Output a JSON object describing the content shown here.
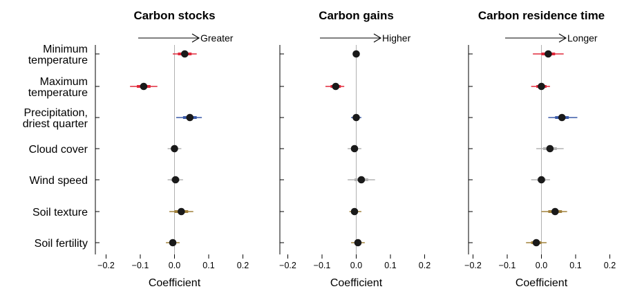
{
  "colors": {
    "red": "#e0283a",
    "blue": "#3a5aa8",
    "gray": "#b3b3b3",
    "brown": "#a0803a",
    "point": "#1a1a1a",
    "zero_line": "#b0b0b0"
  },
  "chart_data": [
    {
      "type": "scatter",
      "title": "Carbon stocks",
      "direction_label": "Greater",
      "xlabel": "Coefficient",
      "xlim": [
        -0.2,
        0.2
      ],
      "xticks": [
        "−0.2",
        "−0.1",
        "0.0",
        "0.1",
        "0.2"
      ],
      "categories": [
        "Minimum\ntemperature",
        "Maximum\ntemperature",
        "Precipitation,\ndriest quarter",
        "Cloud cover",
        "Wind speed",
        "Soil texture",
        "Soil fertility"
      ],
      "points": [
        {
          "est": 0.03,
          "ci_thick": [
            0.01,
            0.05
          ],
          "ci_thin": [
            -0.005,
            0.065
          ],
          "color": "red"
        },
        {
          "est": -0.09,
          "ci_thick": [
            -0.11,
            -0.07
          ],
          "ci_thin": [
            -0.13,
            -0.05
          ],
          "color": "red"
        },
        {
          "est": 0.045,
          "ci_thick": [
            0.025,
            0.065
          ],
          "ci_thin": [
            0.005,
            0.08
          ],
          "color": "blue"
        },
        {
          "est": 0.0,
          "ci_thick": [
            -0.01,
            0.01
          ],
          "ci_thin": [
            -0.02,
            0.02
          ],
          "color": "gray"
        },
        {
          "est": 0.003,
          "ci_thick": [
            -0.01,
            0.015
          ],
          "ci_thin": [
            -0.02,
            0.025
          ],
          "color": "gray"
        },
        {
          "est": 0.02,
          "ci_thick": [
            0.0,
            0.04
          ],
          "ci_thin": [
            -0.015,
            0.055
          ],
          "color": "brown"
        },
        {
          "est": -0.005,
          "ci_thick": [
            -0.015,
            0.005
          ],
          "ci_thin": [
            -0.025,
            0.015
          ],
          "color": "brown"
        }
      ]
    },
    {
      "type": "scatter",
      "title": "Carbon gains",
      "direction_label": "Higher",
      "xlabel": "Coefficient",
      "xlim": [
        -0.2,
        0.2
      ],
      "xticks": [
        "−0.2",
        "−0.1",
        "0.0",
        "0.1",
        "0.2"
      ],
      "categories": [
        "Minimum\ntemperature",
        "Maximum\ntemperature",
        "Precipitation,\ndriest quarter",
        "Cloud cover",
        "Wind speed",
        "Soil texture",
        "Soil fertility"
      ],
      "points": [
        {
          "est": 0.0,
          "ci_thick": [
            -0.005,
            0.005
          ],
          "ci_thin": [
            -0.01,
            0.01
          ],
          "color": "red"
        },
        {
          "est": -0.06,
          "ci_thick": [
            -0.075,
            -0.045
          ],
          "ci_thin": [
            -0.09,
            -0.035
          ],
          "color": "red"
        },
        {
          "est": 0.0,
          "ci_thick": [
            -0.007,
            0.007
          ],
          "ci_thin": [
            -0.015,
            0.015
          ],
          "color": "blue"
        },
        {
          "est": -0.005,
          "ci_thick": [
            -0.015,
            0.005
          ],
          "ci_thin": [
            -0.025,
            0.015
          ],
          "color": "gray"
        },
        {
          "est": 0.015,
          "ci_thick": [
            -0.005,
            0.035
          ],
          "ci_thin": [
            -0.025,
            0.055
          ],
          "color": "gray"
        },
        {
          "est": -0.005,
          "ci_thick": [
            -0.012,
            0.005
          ],
          "ci_thin": [
            -0.02,
            0.015
          ],
          "color": "brown"
        },
        {
          "est": 0.005,
          "ci_thick": [
            -0.005,
            0.015
          ],
          "ci_thin": [
            -0.015,
            0.025
          ],
          "color": "brown"
        }
      ]
    },
    {
      "type": "scatter",
      "title": "Carbon residence time",
      "direction_label": "Longer",
      "xlabel": "Coefficient",
      "xlim": [
        -0.2,
        0.2
      ],
      "xticks": [
        "−0.2",
        "−0.1",
        "0.0",
        "0.1",
        "0.2"
      ],
      "categories": [
        "Minimum\ntemperature",
        "Maximum\ntemperature",
        "Precipitation,\ndriest quarter",
        "Cloud cover",
        "Wind speed",
        "Soil texture",
        "Soil fertility"
      ],
      "points": [
        {
          "est": 0.02,
          "ci_thick": [
            0.0,
            0.04
          ],
          "ci_thin": [
            -0.025,
            0.065
          ],
          "color": "red"
        },
        {
          "est": 0.0,
          "ci_thick": [
            -0.015,
            0.015
          ],
          "ci_thin": [
            -0.03,
            0.025
          ],
          "color": "red"
        },
        {
          "est": 0.06,
          "ci_thick": [
            0.04,
            0.08
          ],
          "ci_thin": [
            0.02,
            0.105
          ],
          "color": "blue"
        },
        {
          "est": 0.025,
          "ci_thick": [
            0.005,
            0.045
          ],
          "ci_thin": [
            -0.015,
            0.065
          ],
          "color": "gray"
        },
        {
          "est": 0.0,
          "ci_thick": [
            -0.012,
            0.012
          ],
          "ci_thin": [
            -0.03,
            0.025
          ],
          "color": "gray"
        },
        {
          "est": 0.04,
          "ci_thick": [
            0.02,
            0.06
          ],
          "ci_thin": [
            0.0,
            0.075
          ],
          "color": "brown"
        },
        {
          "est": -0.015,
          "ci_thick": [
            -0.03,
            0.0
          ],
          "ci_thin": [
            -0.045,
            0.015
          ],
          "color": "brown"
        }
      ]
    }
  ]
}
